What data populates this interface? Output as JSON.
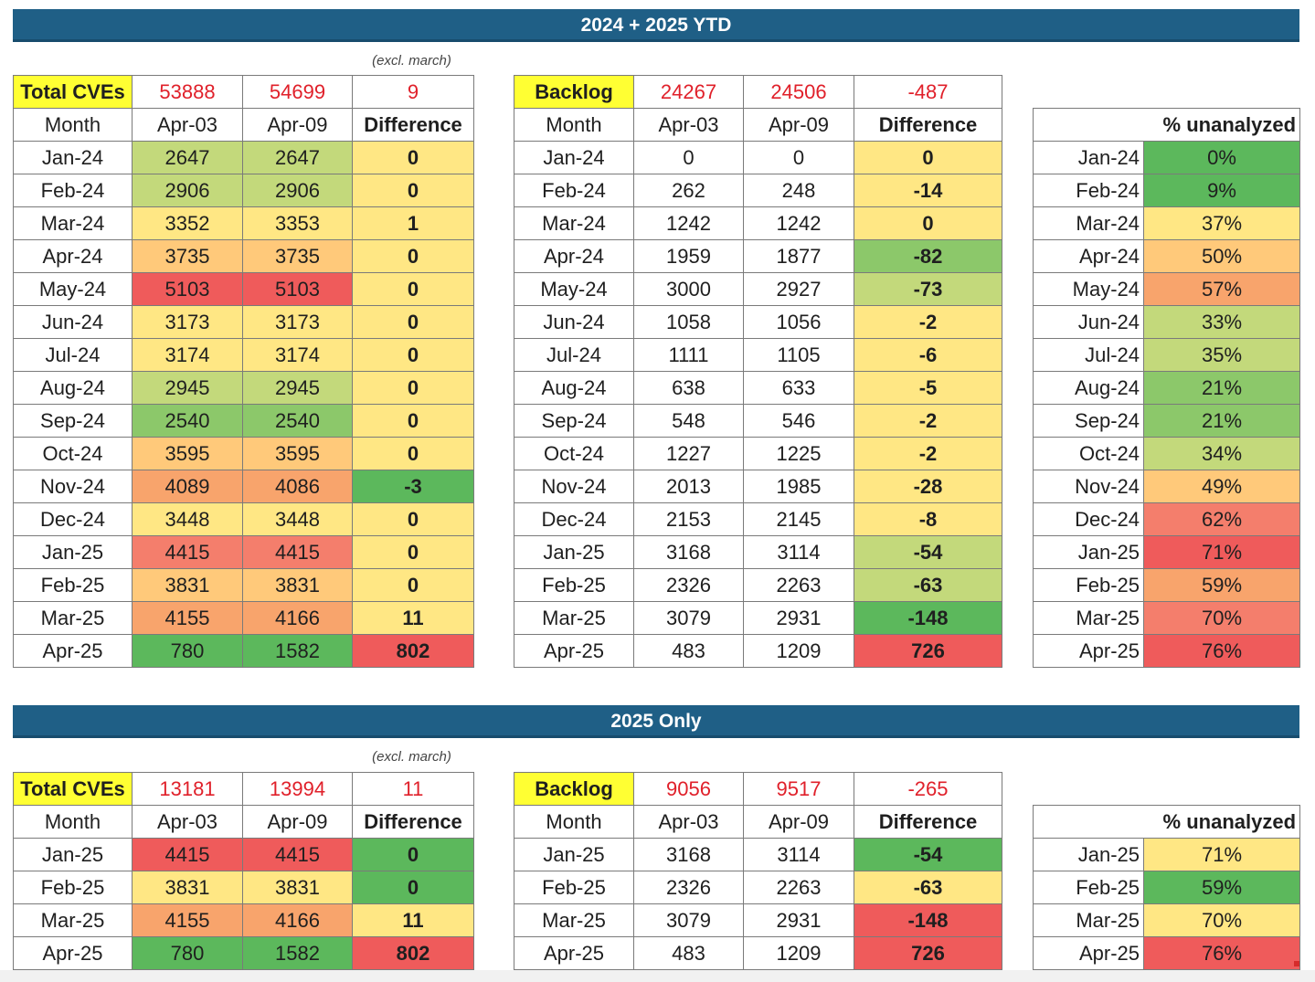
{
  "colors": {
    "banner": "#1f5f86",
    "highlight": "#ffff33",
    "total_text": "#e0202a",
    "green": "#5cb85c",
    "yellow": "#ffe784",
    "red": "#ef5b5b"
  },
  "sections": [
    {
      "title": "2024 + 2025 YTD",
      "note": "(excl. march)",
      "cves": {
        "label": "Total CVEs",
        "total_a": "53888",
        "total_b": "54699",
        "total_diff": "9",
        "header": [
          "Month",
          "Apr-03",
          "Apr-09",
          "Difference"
        ],
        "rows": [
          [
            "Jan-24",
            "2647",
            "2647",
            "0"
          ],
          [
            "Feb-24",
            "2906",
            "2906",
            "0"
          ],
          [
            "Mar-24",
            "3352",
            "3353",
            "1"
          ],
          [
            "Apr-24",
            "3735",
            "3735",
            "0"
          ],
          [
            "May-24",
            "5103",
            "5103",
            "0"
          ],
          [
            "Jun-24",
            "3173",
            "3173",
            "0"
          ],
          [
            "Jul-24",
            "3174",
            "3174",
            "0"
          ],
          [
            "Aug-24",
            "2945",
            "2945",
            "0"
          ],
          [
            "Sep-24",
            "2540",
            "2540",
            "0"
          ],
          [
            "Oct-24",
            "3595",
            "3595",
            "0"
          ],
          [
            "Nov-24",
            "4089",
            "4086",
            "-3"
          ],
          [
            "Dec-24",
            "3448",
            "3448",
            "0"
          ],
          [
            "Jan-25",
            "4415",
            "4415",
            "0"
          ],
          [
            "Feb-25",
            "3831",
            "3831",
            "0"
          ],
          [
            "Mar-25",
            "4155",
            "4166",
            "11"
          ],
          [
            "Apr-25",
            "780",
            "1582",
            "802"
          ]
        ],
        "colors": [
          [
            "g3",
            "g3",
            "y"
          ],
          [
            "g3",
            "g3",
            "y"
          ],
          [
            "y",
            "y",
            "y"
          ],
          [
            "o1",
            "o1",
            "y"
          ],
          [
            "r2",
            "r2",
            "y"
          ],
          [
            "y",
            "y",
            "y"
          ],
          [
            "y",
            "y",
            "y"
          ],
          [
            "g3",
            "g3",
            "y"
          ],
          [
            "g2",
            "g2",
            "y"
          ],
          [
            "o1",
            "o1",
            "y"
          ],
          [
            "o2",
            "o2",
            "g1"
          ],
          [
            "y",
            "y",
            "y"
          ],
          [
            "r1",
            "r1",
            "y"
          ],
          [
            "o1",
            "o1",
            "y"
          ],
          [
            "o2",
            "o2",
            "y"
          ],
          [
            "g1",
            "g1",
            "r2"
          ]
        ]
      },
      "backlog": {
        "label": "Backlog",
        "total_a": "24267",
        "total_b": "24506",
        "total_diff": "-487",
        "header": [
          "Month",
          "Apr-03",
          "Apr-09",
          "Difference"
        ],
        "rows": [
          [
            "Jan-24",
            "0",
            "0",
            "0"
          ],
          [
            "Feb-24",
            "262",
            "248",
            "-14"
          ],
          [
            "Mar-24",
            "1242",
            "1242",
            "0"
          ],
          [
            "Apr-24",
            "1959",
            "1877",
            "-82"
          ],
          [
            "May-24",
            "3000",
            "2927",
            "-73"
          ],
          [
            "Jun-24",
            "1058",
            "1056",
            "-2"
          ],
          [
            "Jul-24",
            "1111",
            "1105",
            "-6"
          ],
          [
            "Aug-24",
            "638",
            "633",
            "-5"
          ],
          [
            "Sep-24",
            "548",
            "546",
            "-2"
          ],
          [
            "Oct-24",
            "1227",
            "1225",
            "-2"
          ],
          [
            "Nov-24",
            "2013",
            "1985",
            "-28"
          ],
          [
            "Dec-24",
            "2153",
            "2145",
            "-8"
          ],
          [
            "Jan-25",
            "3168",
            "3114",
            "-54"
          ],
          [
            "Feb-25",
            "2326",
            "2263",
            "-63"
          ],
          [
            "Mar-25",
            "3079",
            "2931",
            "-148"
          ],
          [
            "Apr-25",
            "483",
            "1209",
            "726"
          ]
        ],
        "diff_colors": [
          "y",
          "y",
          "y",
          "g2",
          "g3",
          "y",
          "y",
          "y",
          "y",
          "y",
          "y",
          "y",
          "g3",
          "g3",
          "g1",
          "r2"
        ]
      },
      "pct": {
        "header": "% unanalyzed",
        "rows": [
          [
            "Jan-24",
            "0%"
          ],
          [
            "Feb-24",
            "9%"
          ],
          [
            "Mar-24",
            "37%"
          ],
          [
            "Apr-24",
            "50%"
          ],
          [
            "May-24",
            "57%"
          ],
          [
            "Jun-24",
            "33%"
          ],
          [
            "Jul-24",
            "35%"
          ],
          [
            "Aug-24",
            "21%"
          ],
          [
            "Sep-24",
            "21%"
          ],
          [
            "Oct-24",
            "34%"
          ],
          [
            "Nov-24",
            "49%"
          ],
          [
            "Dec-24",
            "62%"
          ],
          [
            "Jan-25",
            "71%"
          ],
          [
            "Feb-25",
            "59%"
          ],
          [
            "Mar-25",
            "70%"
          ],
          [
            "Apr-25",
            "76%"
          ]
        ],
        "colors": [
          "g1",
          "g1",
          "y",
          "o1",
          "o2",
          "g3",
          "g3",
          "g2",
          "g2",
          "g3",
          "o1",
          "r1",
          "r2",
          "o2",
          "r1",
          "r2"
        ]
      }
    },
    {
      "title": "2025 Only",
      "note": "(excl. march)",
      "cves": {
        "label": "Total CVEs",
        "total_a": "13181",
        "total_b": "13994",
        "total_diff": "11",
        "header": [
          "Month",
          "Apr-03",
          "Apr-09",
          "Difference"
        ],
        "rows": [
          [
            "Jan-25",
            "4415",
            "4415",
            "0"
          ],
          [
            "Feb-25",
            "3831",
            "3831",
            "0"
          ],
          [
            "Mar-25",
            "4155",
            "4166",
            "11"
          ],
          [
            "Apr-25",
            "780",
            "1582",
            "802"
          ]
        ],
        "colors": [
          [
            "r2",
            "r2",
            "g1"
          ],
          [
            "y",
            "y",
            "g1"
          ],
          [
            "o2",
            "o2",
            "y"
          ],
          [
            "g1",
            "g1",
            "r2"
          ]
        ]
      },
      "backlog": {
        "label": "Backlog",
        "total_a": "9056",
        "total_b": "9517",
        "total_diff": "-265",
        "header": [
          "Month",
          "Apr-03",
          "Apr-09",
          "Difference"
        ],
        "rows": [
          [
            "Jan-25",
            "3168",
            "3114",
            "-54"
          ],
          [
            "Feb-25",
            "2326",
            "2263",
            "-63"
          ],
          [
            "Mar-25",
            "3079",
            "2931",
            "-148"
          ],
          [
            "Apr-25",
            "483",
            "1209",
            "726"
          ]
        ],
        "diff_colors": [
          "g1",
          "y",
          "r2",
          "r2"
        ]
      },
      "pct": {
        "header": "% unanalyzed",
        "rows": [
          [
            "Jan-25",
            "71%"
          ],
          [
            "Feb-25",
            "59%"
          ],
          [
            "Mar-25",
            "70%"
          ],
          [
            "Apr-25",
            "76%"
          ]
        ],
        "colors": [
          "y",
          "g1",
          "y",
          "r2"
        ]
      }
    }
  ]
}
